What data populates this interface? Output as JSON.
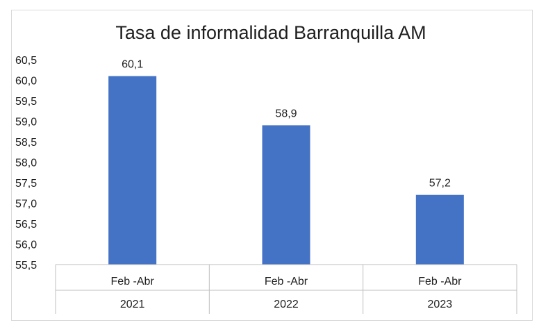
{
  "chart_data": {
    "type": "bar",
    "title": "Tasa de informalidad Barranquilla AM",
    "categories": [
      {
        "sub": "Feb -Abr",
        "group": "2021"
      },
      {
        "sub": "Feb -Abr",
        "group": "2022"
      },
      {
        "sub": "Feb -Abr",
        "group": "2023"
      }
    ],
    "values": [
      60.1,
      58.9,
      57.2
    ],
    "value_labels": [
      "60,1",
      "58,9",
      "57,2"
    ],
    "ylim": [
      55.5,
      60.5
    ],
    "yticks": [
      "60,5",
      "60,0",
      "59,5",
      "59,0",
      "58,5",
      "58,0",
      "57,5",
      "57,0",
      "56,5",
      "56,0",
      "55,5"
    ],
    "ytick_values": [
      60.5,
      60.0,
      59.5,
      59.0,
      58.5,
      58.0,
      57.5,
      57.0,
      56.5,
      56.0,
      55.5
    ],
    "bar_color": "#4472c4",
    "grid": false,
    "legend": "none"
  }
}
